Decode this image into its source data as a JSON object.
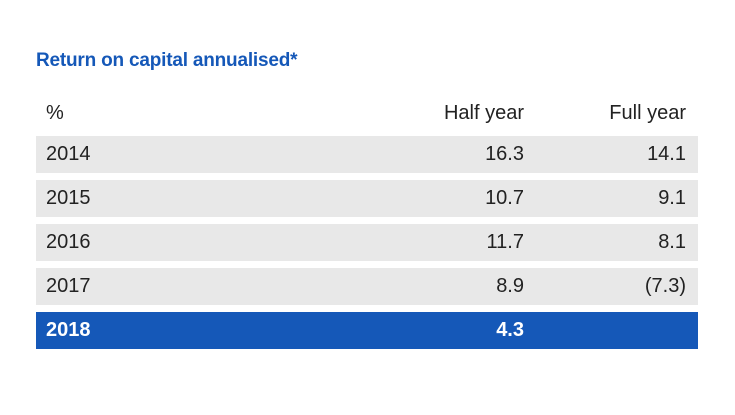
{
  "title": "Return on capital annualised*",
  "table": {
    "header": {
      "unit": "%",
      "half_year": "Half year",
      "full_year": "Full year"
    },
    "rows": [
      {
        "year": "2014",
        "half_year": "16.3",
        "full_year": "14.1"
      },
      {
        "year": "2015",
        "half_year": "10.7",
        "full_year": "9.1"
      },
      {
        "year": "2016",
        "half_year": "11.7",
        "full_year": "8.1"
      },
      {
        "year": "2017",
        "half_year": "8.9",
        "full_year": "(7.3)"
      },
      {
        "year": "2018",
        "half_year": "4.3",
        "full_year": ""
      }
    ]
  },
  "colors": {
    "accent": "#1558b8",
    "row_shade": "#e8e8e8",
    "text": "#222222"
  }
}
